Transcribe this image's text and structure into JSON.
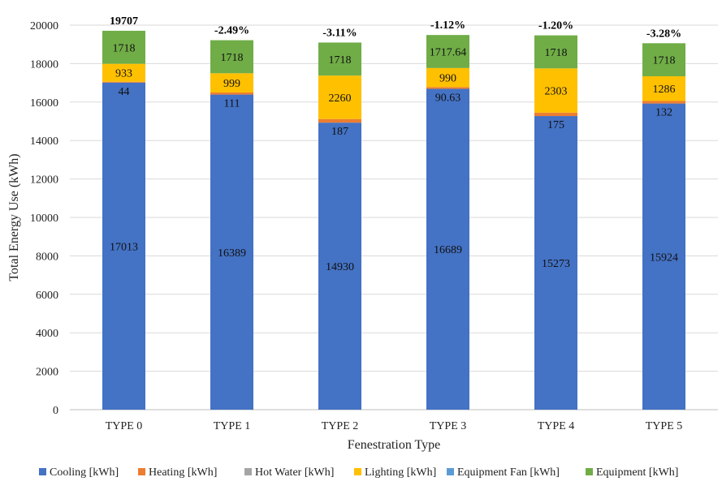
{
  "chart_data": {
    "type": "bar",
    "stacked": true,
    "title": "",
    "xlabel": "Fenestration Type",
    "ylabel": "Total Energy Use (kWh)",
    "ylim": [
      0,
      20000
    ],
    "yticks": [
      0,
      2000,
      4000,
      6000,
      8000,
      10000,
      12000,
      14000,
      16000,
      18000,
      20000
    ],
    "grid": true,
    "legend_position": "bottom",
    "categories": [
      "TYPE 0",
      "TYPE 1",
      "TYPE 2",
      "TYPE 3",
      "TYPE 4",
      "TYPE 5"
    ],
    "series": [
      {
        "name": "Cooling [kWh]",
        "color": "#4472C4",
        "values": [
          17013,
          16389,
          14930,
          16689,
          15273,
          15924
        ],
        "labels": [
          "17013",
          "16389",
          "14930",
          "16689",
          "15273",
          "15924"
        ],
        "label_position": "middle"
      },
      {
        "name": "Heating [kWh]",
        "color": "#ED7D31",
        "values": [
          44,
          111,
          187,
          90.63,
          175,
          132
        ],
        "labels": [
          "44",
          "111",
          "187",
          "90.63",
          "175",
          "132"
        ],
        "label_position": "below"
      },
      {
        "name": "Hot Water [kWh]",
        "color": "#A5A5A5",
        "values": [
          0,
          0,
          0,
          0,
          0,
          0
        ],
        "labels": [],
        "label_position": "none"
      },
      {
        "name": "Lighting [kWh]",
        "color": "#FFC000",
        "values": [
          933,
          999,
          2260,
          990,
          2303,
          1286
        ],
        "labels": [
          "933",
          "999",
          "2260",
          "990",
          "2303",
          "1286"
        ],
        "label_position": "middle"
      },
      {
        "name": "Equipment Fan [kWh]",
        "color": "#5B9BD5",
        "values": [
          0,
          0,
          0,
          0,
          0,
          0
        ],
        "labels": [],
        "label_position": "none"
      },
      {
        "name": "Equipment [kWh]",
        "color": "#70AD47",
        "values": [
          1718,
          1718,
          1718,
          1717.64,
          1718,
          1718
        ],
        "labels": [
          "1718",
          "1718",
          "1718",
          "1717.64",
          "1718",
          "1718"
        ],
        "label_position": "middle"
      }
    ],
    "top_labels": [
      "19707",
      "-2.49%",
      "-3.11%",
      "-1.12%",
      "-1.20%",
      "-3.28%"
    ]
  }
}
